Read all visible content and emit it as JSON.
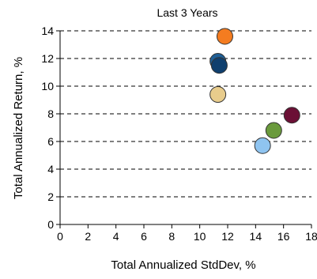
{
  "chart_data": {
    "type": "scatter",
    "title": "Last 3 Years",
    "xlabel": "Total Annualized StdDev, %",
    "ylabel": "Total Annualized Return, %",
    "xlim": [
      0,
      18
    ],
    "ylim": [
      0,
      14
    ],
    "x_ticks": [
      "0",
      "2",
      "4",
      "6",
      "8",
      "10",
      "12",
      "14",
      "16",
      "18"
    ],
    "y_ticks": [
      "0",
      "2",
      "4",
      "6",
      "8",
      "10",
      "12",
      "14"
    ],
    "grid": "horizontal dashed",
    "legend": "none",
    "points": [
      {
        "x": 11.8,
        "y": 13.6,
        "color": "#f47c20"
      },
      {
        "x": 11.3,
        "y": 11.8,
        "color": "#1f5f96"
      },
      {
        "x": 11.4,
        "y": 11.5,
        "color": "#0f3f6e"
      },
      {
        "x": 11.3,
        "y": 9.4,
        "color": "#e8cc8c"
      },
      {
        "x": 16.6,
        "y": 7.9,
        "color": "#6b1035"
      },
      {
        "x": 15.3,
        "y": 6.8,
        "color": "#6a9a3c"
      },
      {
        "x": 14.5,
        "y": 5.7,
        "color": "#8fc4f0"
      }
    ]
  }
}
